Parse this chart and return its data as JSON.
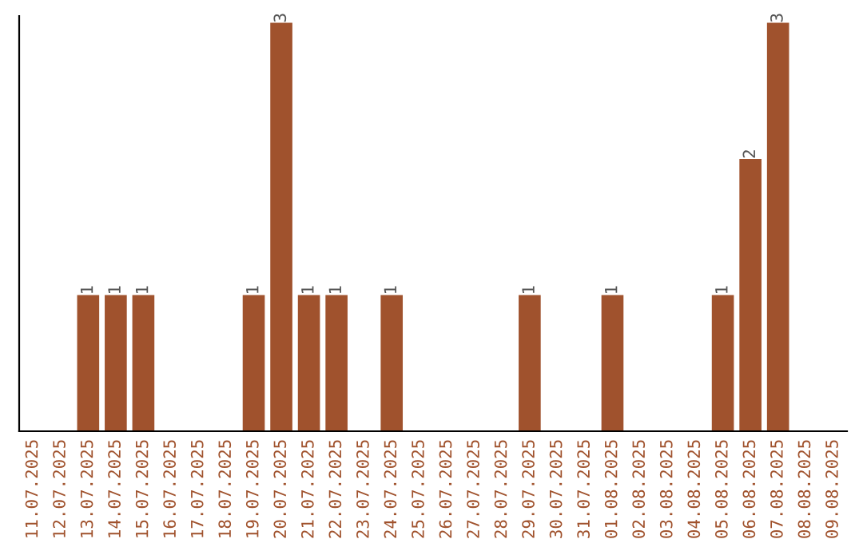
{
  "chart_data": {
    "type": "bar",
    "categories": [
      "11.07.2025",
      "12.07.2025",
      "13.07.2025",
      "14.07.2025",
      "15.07.2025",
      "16.07.2025",
      "17.07.2025",
      "18.07.2025",
      "19.07.2025",
      "20.07.2025",
      "21.07.2025",
      "22.07.2025",
      "23.07.2025",
      "24.07.2025",
      "25.07.2025",
      "26.07.2025",
      "27.07.2025",
      "28.07.2025",
      "29.07.2025",
      "30.07.2025",
      "31.07.2025",
      "01.08.2025",
      "02.08.2025",
      "03.08.2025",
      "04.08.2025",
      "05.08.2025",
      "06.08.2025",
      "07.08.2025",
      "08.08.2025",
      "09.08.2025"
    ],
    "values": [
      0,
      0,
      1,
      1,
      1,
      0,
      0,
      0,
      1,
      3,
      1,
      1,
      0,
      1,
      0,
      0,
      0,
      0,
      1,
      0,
      0,
      1,
      0,
      0,
      0,
      1,
      2,
      3,
      0,
      0
    ],
    "value_labels": [
      null,
      null,
      "1",
      "1",
      "1",
      null,
      null,
      null,
      "1",
      "3",
      "1",
      "1",
      null,
      "1",
      null,
      null,
      null,
      null,
      "1",
      null,
      null,
      "1",
      null,
      null,
      null,
      "1",
      "2",
      "3",
      null,
      null
    ],
    "color": "#a0522d",
    "ylim": [
      0,
      3.05
    ],
    "tick_labels": "x",
    "grid": false,
    "legend": false
  }
}
